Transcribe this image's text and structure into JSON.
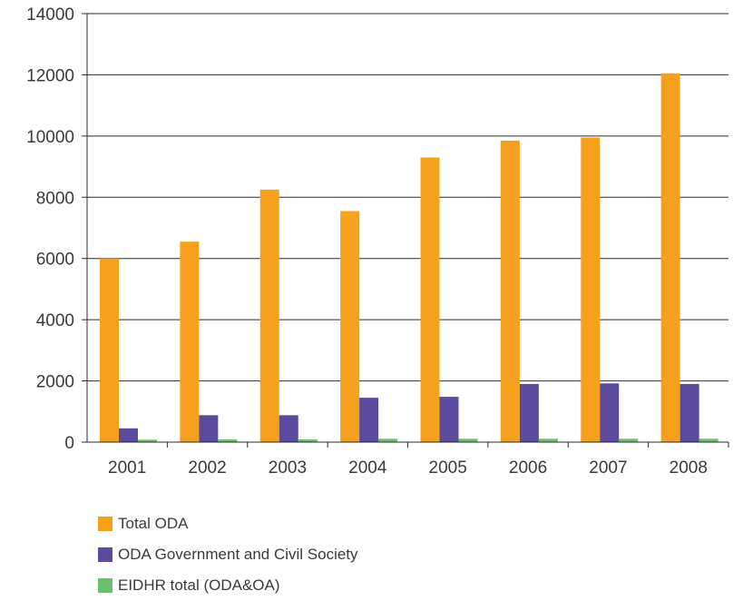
{
  "chart_data": {
    "type": "bar",
    "title": "",
    "xlabel": "",
    "ylabel": "",
    "ylim": [
      0,
      14000
    ],
    "yticks": [
      0,
      2000,
      4000,
      6000,
      8000,
      10000,
      12000,
      14000
    ],
    "grid": "horizontal",
    "legend": "bottom-left",
    "categories": [
      "2001",
      "2002",
      "2003",
      "2004",
      "2005",
      "2006",
      "2007",
      "2008"
    ],
    "series": [
      {
        "name": "Total ODA",
        "color": "#f5a11e",
        "values": [
          6000,
          6550,
          8250,
          7550,
          9300,
          9850,
          9950,
          12050
        ]
      },
      {
        "name": "ODA Government and Civil Society",
        "color": "#5b4a9e",
        "values": [
          450,
          880,
          880,
          1450,
          1480,
          1900,
          1920,
          1900
        ]
      },
      {
        "name": "EIDHR total (ODA&OA)",
        "color": "#6cbf6c",
        "values": [
          80,
          90,
          90,
          110,
          110,
          110,
          110,
          110
        ]
      }
    ]
  }
}
